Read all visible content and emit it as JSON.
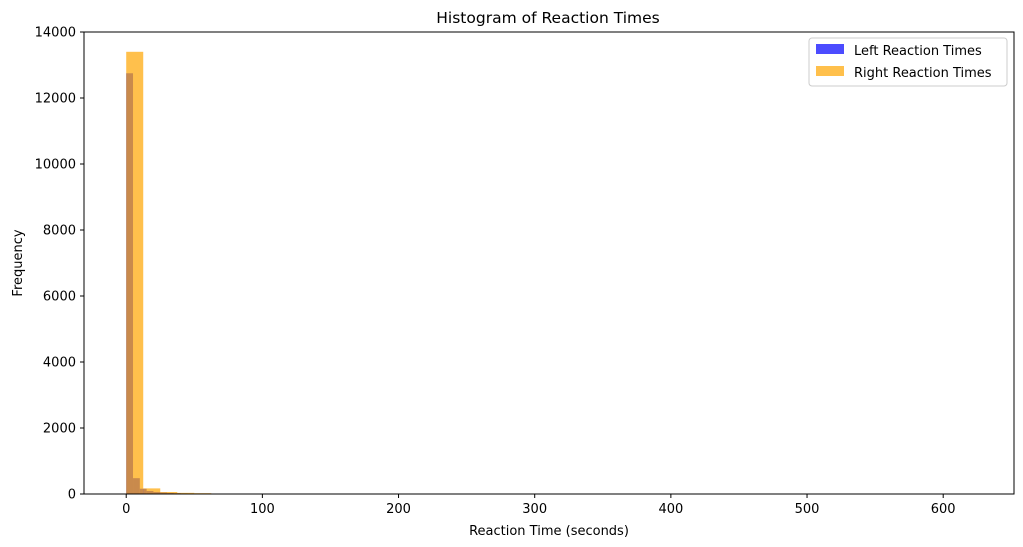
{
  "chart_data": {
    "type": "bar",
    "title": "Histogram of Reaction Times",
    "xlabel": "Reaction Time (seconds)",
    "ylabel": "Frequency",
    "xlim": [
      -31,
      652
    ],
    "ylim": [
      0,
      14000
    ],
    "xticks": [
      0,
      100,
      200,
      300,
      400,
      500,
      600
    ],
    "yticks": [
      0,
      2000,
      4000,
      6000,
      8000,
      10000,
      12000,
      14000
    ],
    "grid": false,
    "legend": {
      "position": "top-right"
    },
    "series": [
      {
        "name": "Left Reaction Times",
        "color": "#0000ff",
        "opacity": 0.7,
        "bin_width": 5,
        "bins": [
          [
            0,
            5,
            12750
          ],
          [
            5,
            10,
            480
          ],
          [
            10,
            15,
            160
          ],
          [
            15,
            20,
            90
          ],
          [
            20,
            25,
            60
          ],
          [
            25,
            30,
            45
          ],
          [
            30,
            35,
            32
          ],
          [
            35,
            40,
            25
          ],
          [
            40,
            45,
            18
          ],
          [
            45,
            50,
            14
          ],
          [
            50,
            55,
            10
          ],
          [
            55,
            60,
            8
          ],
          [
            60,
            65,
            6
          ],
          [
            65,
            70,
            5
          ],
          [
            70,
            75,
            4
          ]
        ]
      },
      {
        "name": "Right Reaction Times",
        "color": "#ffa500",
        "opacity": 0.7,
        "bin_width": 12.5,
        "bins": [
          [
            0,
            12.5,
            13400
          ],
          [
            12.5,
            25,
            170
          ],
          [
            25,
            37.5,
            60
          ],
          [
            37.5,
            50,
            35
          ],
          [
            50,
            62.5,
            25
          ],
          [
            62.5,
            75,
            15
          ],
          [
            75,
            87.5,
            6
          ],
          [
            87.5,
            100,
            4
          ],
          [
            100,
            112.5,
            3
          ],
          [
            112.5,
            125,
            2
          ],
          [
            125,
            137.5,
            2
          ],
          [
            137.5,
            150,
            1
          ],
          [
            200,
            212.5,
            8
          ],
          [
            525,
            537.5,
            2
          ],
          [
            537.5,
            550,
            1
          ]
        ]
      }
    ]
  }
}
